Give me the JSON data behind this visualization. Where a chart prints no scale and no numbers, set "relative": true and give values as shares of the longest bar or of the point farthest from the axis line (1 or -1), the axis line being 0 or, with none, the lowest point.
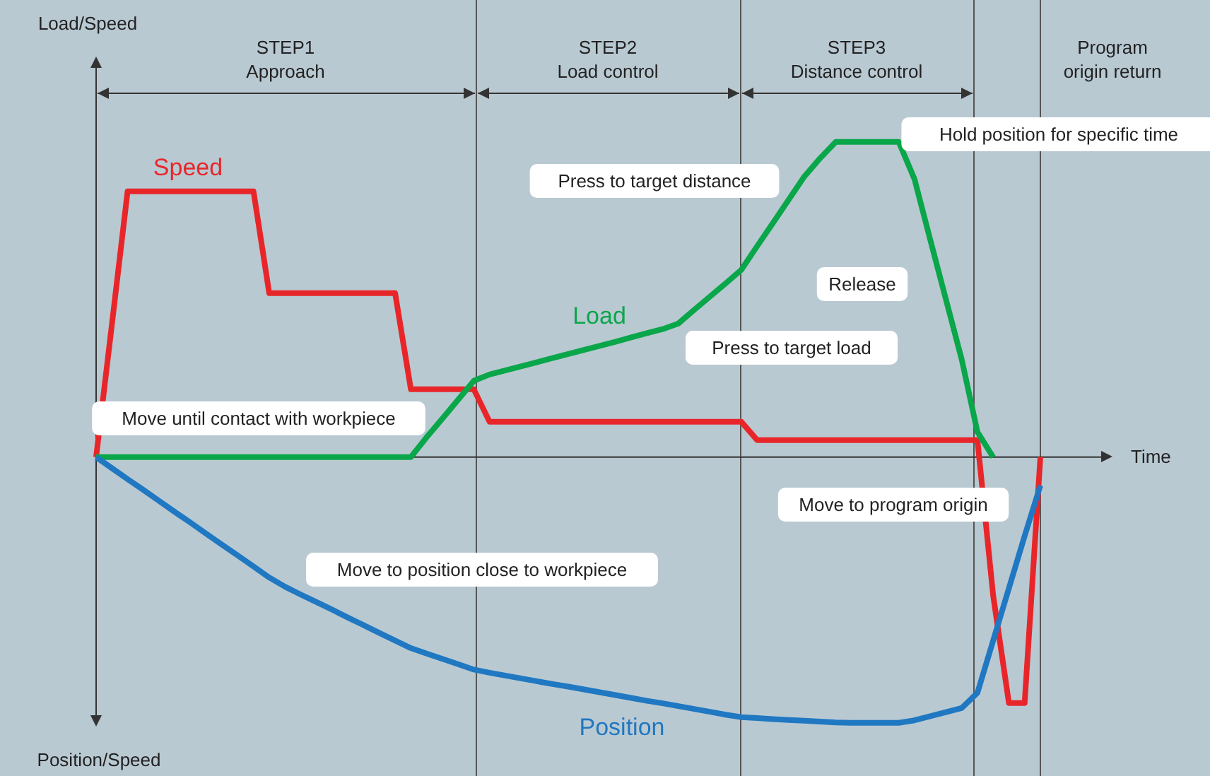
{
  "chart_data": {
    "type": "line",
    "relative": true,
    "xlabel": "Time",
    "grid": "x",
    "categories": [
      null,
      null,
      null,
      null,
      null,
      null,
      null,
      null,
      null,
      null,
      null,
      null,
      null,
      null,
      null,
      null,
      null,
      null,
      null,
      null,
      null,
      null,
      null,
      null,
      null,
      null,
      null,
      null,
      null,
      null,
      null,
      null,
      null,
      null,
      null,
      null,
      null,
      null,
      null,
      null,
      null,
      null,
      null,
      null,
      null,
      null,
      null,
      null,
      null,
      null,
      null,
      null,
      null,
      null,
      null,
      null,
      null,
      null,
      null,
      null,
      null
    ],
    "series": [
      {
        "name": "Speed",
        "color": "#e8262a",
        "values": [
          0,
          0.42,
          0.843,
          0.843,
          0.843,
          0.843,
          0.843,
          0.843,
          0.843,
          0.843,
          0.843,
          0.52,
          0.52,
          0.52,
          0.52,
          0.52,
          0.52,
          0.52,
          0.52,
          0.52,
          0.215,
          0.215,
          0.215,
          0.215,
          0.215,
          0.112,
          0.112,
          0.112,
          0.112,
          0.112,
          0.112,
          0.112,
          0.112,
          0.112,
          0.112,
          0.112,
          0.112,
          0.112,
          0.112,
          0.112,
          0.112,
          0.112,
          0.054,
          0.054,
          0.054,
          0.054,
          0.054,
          0.054,
          0.054,
          0.054,
          0.054,
          0.054,
          0.054,
          0.054,
          0.054,
          0.054,
          0.054,
          -0.439,
          -0.78,
          -0.78,
          0
        ]
      },
      {
        "name": "Load",
        "color": "#0aa64a",
        "values": [
          0,
          0,
          0,
          0,
          0,
          0,
          0,
          0,
          0,
          0,
          0,
          0,
          0,
          0,
          0,
          0,
          0,
          0,
          0,
          0,
          0,
          0.063,
          0.122,
          0.182,
          0.242,
          0.262,
          0.275,
          0.288,
          0.301,
          0.314,
          0.327,
          0.34,
          0.353,
          0.366,
          0.38,
          0.393,
          0.406,
          0.424,
          0.467,
          0.509,
          0.551,
          0.594,
          0.669,
          0.742,
          0.816,
          0.89,
          0.948,
          1,
          1,
          1,
          1,
          1,
          0.882,
          0.69,
          0.5,
          0.31,
          0.08,
          0,
          null,
          null,
          null
        ]
      },
      {
        "name": "Position",
        "color": "#1f78c1",
        "values": [
          0,
          -0.035,
          -0.07,
          -0.104,
          -0.139,
          -0.174,
          -0.208,
          -0.243,
          -0.278,
          -0.312,
          -0.347,
          -0.382,
          -0.411,
          -0.436,
          -0.46,
          -0.484,
          -0.509,
          -0.533,
          -0.558,
          -0.582,
          -0.606,
          -0.623,
          -0.64,
          -0.657,
          -0.674,
          -0.684,
          -0.693,
          -0.702,
          -0.711,
          -0.72,
          -0.728,
          -0.737,
          -0.746,
          -0.755,
          -0.764,
          -0.773,
          -0.781,
          -0.79,
          -0.799,
          -0.808,
          -0.817,
          -0.825,
          -0.828,
          -0.831,
          -0.834,
          -0.836,
          -0.839,
          -0.842,
          -0.843,
          -0.843,
          -0.843,
          -0.843,
          -0.835,
          -0.822,
          -0.809,
          -0.796,
          -0.748,
          -0.582,
          -0.416,
          -0.25,
          -0.09
        ]
      }
    ],
    "annotations": [
      "STEP1\nApproach",
      "STEP2\nLoad control",
      "STEP3\nDistance control",
      "Program\norigin return",
      "Position/Speed",
      "Move until contact with workpiece",
      "Press to target distance",
      "Hold position for specific time",
      "Release",
      "Press to target load",
      "Move to program origin",
      "Move to position close to workpiece",
      "Load/Speed"
    ]
  }
}
